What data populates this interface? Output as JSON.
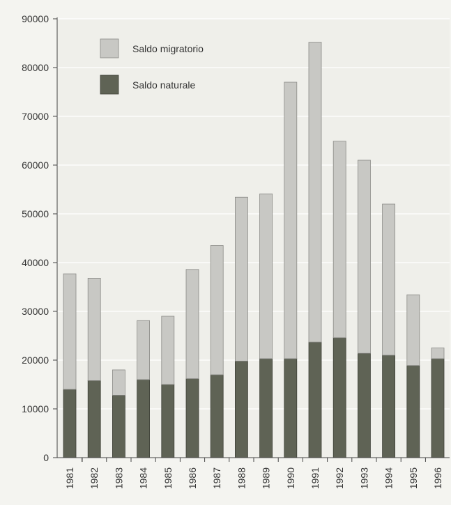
{
  "chart_data": {
    "type": "bar",
    "stacked": true,
    "title": "",
    "xlabel": "",
    "ylabel": "",
    "categories": [
      "1981",
      "1982",
      "1983",
      "1984",
      "1985",
      "1986",
      "1987",
      "1988",
      "1989",
      "1990",
      "1991",
      "1992",
      "1993",
      "1994",
      "1995",
      "1996"
    ],
    "series": [
      {
        "name": "Saldo naturale",
        "color": "#5f6355",
        "values": [
          14000,
          15800,
          12800,
          16000,
          15000,
          16200,
          17000,
          19800,
          20300,
          20300,
          23700,
          24600,
          21400,
          21000,
          18900,
          20300
        ]
      },
      {
        "name": "Saldo migratorio",
        "color": "#c8c8c4",
        "values": [
          23700,
          21000,
          5200,
          12100,
          14000,
          22400,
          26500,
          33600,
          33800,
          56700,
          61500,
          40300,
          39600,
          31000,
          14500,
          2200
        ]
      }
    ],
    "ylim": [
      0,
      90000
    ],
    "yticks": [
      0,
      10000,
      20000,
      30000,
      40000,
      50000,
      60000,
      70000,
      80000,
      90000
    ],
    "grid": true,
    "legend": {
      "position": "top-left",
      "items": [
        "Saldo migratorio",
        "Saldo naturale"
      ]
    }
  }
}
